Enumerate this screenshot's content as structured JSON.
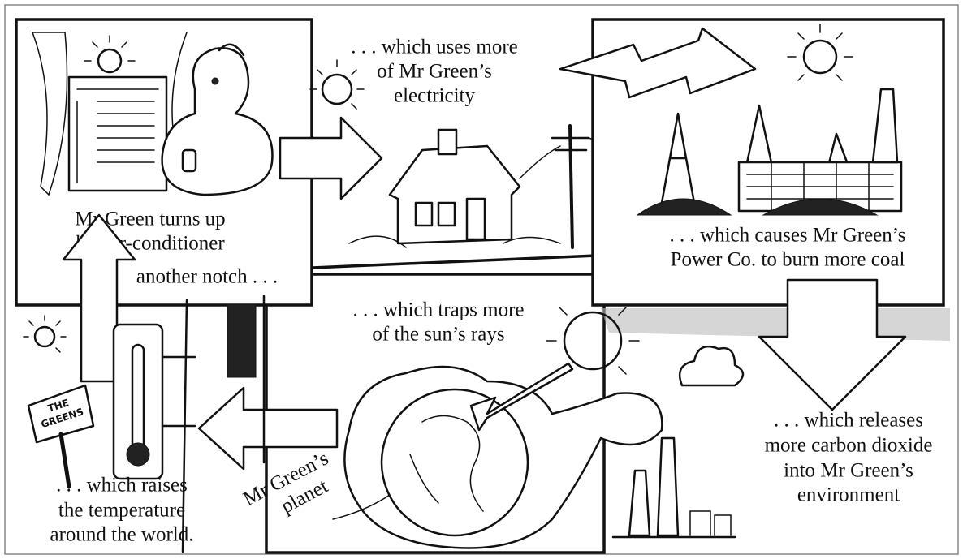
{
  "panels": {
    "air_conditioner": {
      "caption": [
        "Mr Green turns up",
        "his air-conditioner"
      ],
      "continuation": "another notch . . ."
    },
    "electricity": {
      "caption": [
        ". . . which uses more",
        "of Mr Green’s",
        "electricity"
      ]
    },
    "power_company": {
      "caption": [
        ". . . which causes Mr Green’s",
        "Power Co. to burn more coal"
      ]
    },
    "carbon_dioxide": {
      "caption": [
        ". . . which releases",
        "more carbon dioxide",
        "into Mr Green’s",
        "environment"
      ]
    },
    "sun_rays": {
      "caption": [
        ". . . which traps more",
        "of the sun’s rays"
      ]
    },
    "planet": {
      "label": [
        "Mr Green’s",
        "planet"
      ]
    },
    "temperature": {
      "caption": [
        ". . . which raises",
        "the temperature",
        "around the world."
      ]
    },
    "mailbox": {
      "label": [
        "THE",
        "GREENS"
      ]
    }
  }
}
